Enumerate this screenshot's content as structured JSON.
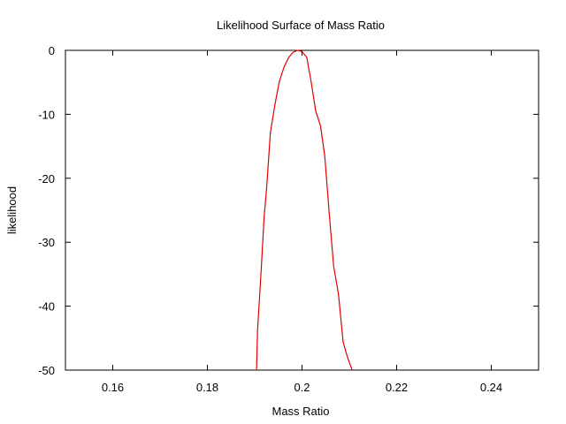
{
  "chart_data": {
    "type": "line",
    "title": "Likelihood Surface of Mass Ratio",
    "xlabel": "Mass Ratio",
    "ylabel": "likelihood",
    "xlim": [
      0.15,
      0.25
    ],
    "ylim": [
      -50,
      0
    ],
    "xticks": [
      0.16,
      0.18,
      0.2,
      0.22,
      0.24
    ],
    "xtick_labels": [
      "0.16",
      "0.18",
      "0.2",
      "0.22",
      "0.24"
    ],
    "yticks": [
      -50,
      -40,
      -30,
      -20,
      -10,
      0
    ],
    "ytick_labels": [
      "-50",
      "-40",
      "-30",
      "-20",
      "-10",
      "0"
    ],
    "grid": false,
    "series": [
      {
        "color": "#e00000",
        "x": [
          0.1904,
          0.1906,
          0.1912,
          0.192,
          0.1925,
          0.1933,
          0.1943,
          0.1952,
          0.1962,
          0.1972,
          0.1981,
          0.1991,
          0.2,
          0.201,
          0.2019,
          0.2029,
          0.2039,
          0.2048,
          0.2058,
          0.2067,
          0.2077,
          0.2087,
          0.2096,
          0.2106
        ],
        "y": [
          -50.0,
          -43.8,
          -36.6,
          -26.0,
          -21.7,
          -12.9,
          -8.4,
          -4.9,
          -2.6,
          -1.1,
          -0.3,
          0.0,
          -0.2,
          -1.1,
          -4.8,
          -9.5,
          -11.8,
          -16.5,
          -25.9,
          -33.8,
          -38.1,
          -45.6,
          -48.0,
          -50.0
        ]
      }
    ]
  }
}
